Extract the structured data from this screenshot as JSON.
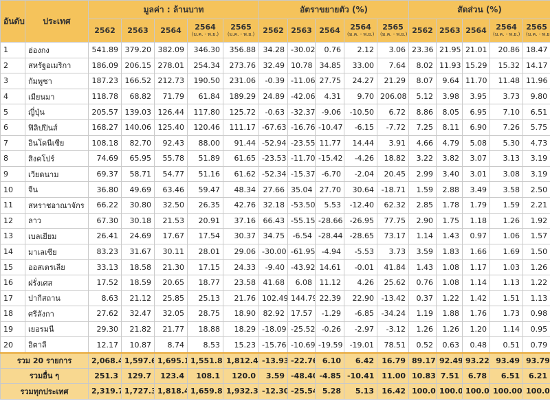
{
  "header": {
    "rank": "อันดับที่",
    "country": "ประเทศ",
    "groups": [
      "มูลค่า : ล้านบาท",
      "อัตราขยายตัว (%)",
      "สัดส่วน (%)"
    ],
    "years": [
      {
        "year": "2562",
        "sub": ""
      },
      {
        "year": "2563",
        "sub": ""
      },
      {
        "year": "2564",
        "sub": ""
      },
      {
        "year": "2564",
        "sub": "(ม.ค. - พ.ย.)"
      },
      {
        "year": "2565",
        "sub": "(ม.ค. - พ.ย.)"
      }
    ]
  },
  "rows": [
    {
      "rank": "1",
      "country": "ฮ่องกง",
      "v": [
        "541.89",
        "379.20",
        "382.09",
        "346.30",
        "356.88",
        "34.28",
        "-30.02",
        "0.76",
        "2.12",
        "3.06",
        "23.36",
        "21.95",
        "21.01",
        "20.86",
        "18.47"
      ]
    },
    {
      "rank": "2",
      "country": "สหรัฐอเมริกา",
      "v": [
        "186.09",
        "206.15",
        "278.01",
        "254.34",
        "273.76",
        "32.49",
        "10.78",
        "34.85",
        "33.00",
        "7.64",
        "8.02",
        "11.93",
        "15.29",
        "15.32",
        "14.17"
      ]
    },
    {
      "rank": "3",
      "country": "กัมพูชา",
      "v": [
        "187.23",
        "166.52",
        "212.73",
        "190.50",
        "231.06",
        "-0.39",
        "-11.06",
        "27.75",
        "24.27",
        "21.29",
        "8.07",
        "9.64",
        "11.70",
        "11.48",
        "11.96"
      ]
    },
    {
      "rank": "4",
      "country": "เมียนมา",
      "v": [
        "118.78",
        "68.82",
        "71.79",
        "61.84",
        "189.29",
        "24.89",
        "-42.06",
        "4.31",
        "9.70",
        "206.08",
        "5.12",
        "3.98",
        "3.95",
        "3.73",
        "9.80"
      ]
    },
    {
      "rank": "5",
      "country": "ญี่ปุ่น",
      "v": [
        "205.57",
        "139.03",
        "126.44",
        "117.80",
        "125.72",
        "-0.63",
        "-32.37",
        "-9.06",
        "-10.50",
        "6.72",
        "8.86",
        "8.05",
        "6.95",
        "7.10",
        "6.51"
      ]
    },
    {
      "rank": "6",
      "country": "ฟิลิปปินส์",
      "v": [
        "168.27",
        "140.06",
        "125.40",
        "120.46",
        "111.17",
        "-67.63",
        "-16.76",
        "-10.47",
        "-6.15",
        "-7.72",
        "7.25",
        "8.11",
        "6.90",
        "7.26",
        "5.75"
      ]
    },
    {
      "rank": "7",
      "country": "อินโดนีเซีย",
      "v": [
        "108.18",
        "82.70",
        "92.43",
        "88.00",
        "91.44",
        "-52.94",
        "-23.55",
        "11.77",
        "14.44",
        "3.91",
        "4.66",
        "4.79",
        "5.08",
        "5.30",
        "4.73"
      ]
    },
    {
      "rank": "8",
      "country": "สิงคโปร์",
      "v": [
        "74.69",
        "65.95",
        "55.78",
        "51.89",
        "61.65",
        "-23.53",
        "-11.70",
        "-15.42",
        "-4.26",
        "18.82",
        "3.22",
        "3.82",
        "3.07",
        "3.13",
        "3.19"
      ]
    },
    {
      "rank": "9",
      "country": "เวียดนาม",
      "v": [
        "69.37",
        "58.71",
        "54.77",
        "51.16",
        "61.62",
        "-52.34",
        "-15.37",
        "-6.70",
        "-2.04",
        "20.45",
        "2.99",
        "3.40",
        "3.01",
        "3.08",
        "3.19"
      ]
    },
    {
      "rank": "10",
      "country": "จีน",
      "v": [
        "36.80",
        "49.69",
        "63.46",
        "59.47",
        "48.34",
        "27.66",
        "35.04",
        "27.70",
        "30.64",
        "-18.71",
        "1.59",
        "2.88",
        "3.49",
        "3.58",
        "2.50"
      ]
    },
    {
      "rank": "11",
      "country": "สหราชอาณาจักร",
      "v": [
        "66.22",
        "30.80",
        "32.50",
        "26.35",
        "42.76",
        "32.18",
        "-53.50",
        "5.53",
        "-12.40",
        "62.32",
        "2.85",
        "1.78",
        "1.79",
        "1.59",
        "2.21"
      ]
    },
    {
      "rank": "12",
      "country": "ลาว",
      "v": [
        "67.30",
        "30.18",
        "21.53",
        "20.91",
        "37.16",
        "66.43",
        "-55.15",
        "-28.66",
        "-26.95",
        "77.75",
        "2.90",
        "1.75",
        "1.18",
        "1.26",
        "1.92"
      ]
    },
    {
      "rank": "13",
      "country": "เบลเยียม",
      "v": [
        "26.41",
        "24.69",
        "17.67",
        "17.54",
        "30.37",
        "34.75",
        "-6.54",
        "-28.44",
        "-28.65",
        "73.17",
        "1.14",
        "1.43",
        "0.97",
        "1.06",
        "1.57"
      ]
    },
    {
      "rank": "14",
      "country": "มาเลเซีย",
      "v": [
        "83.23",
        "31.67",
        "30.11",
        "28.01",
        "29.06",
        "-30.00",
        "-61.95",
        "-4.94",
        "-5.53",
        "3.73",
        "3.59",
        "1.83",
        "1.66",
        "1.69",
        "1.50"
      ]
    },
    {
      "rank": "15",
      "country": "ออสเตรเลีย",
      "v": [
        "33.13",
        "18.58",
        "21.30",
        "17.15",
        "24.33",
        "-9.40",
        "-43.92",
        "14.61",
        "-0.01",
        "41.84",
        "1.43",
        "1.08",
        "1.17",
        "1.03",
        "1.26"
      ]
    },
    {
      "rank": "16",
      "country": "ฝรั่งเศส",
      "v": [
        "17.52",
        "18.59",
        "20.65",
        "18.77",
        "23.58",
        "41.68",
        "6.08",
        "11.12",
        "4.26",
        "25.62",
        "0.76",
        "1.08",
        "1.14",
        "1.13",
        "1.22"
      ]
    },
    {
      "rank": "17",
      "country": "ปากีสถาน",
      "v": [
        "8.63",
        "21.12",
        "25.85",
        "25.13",
        "21.76",
        "102.49",
        "144.79",
        "22.39",
        "22.90",
        "-13.42",
        "0.37",
        "1.22",
        "1.42",
        "1.51",
        "1.13"
      ]
    },
    {
      "rank": "18",
      "country": "ศรีลังกา",
      "v": [
        "27.62",
        "32.47",
        "32.05",
        "28.75",
        "18.90",
        "82.92",
        "17.57",
        "-1.29",
        "-6.85",
        "-34.24",
        "1.19",
        "1.88",
        "1.76",
        "1.73",
        "0.98"
      ]
    },
    {
      "rank": "19",
      "country": "เยอรมนี",
      "v": [
        "29.30",
        "21.82",
        "21.77",
        "18.88",
        "18.29",
        "-18.09",
        "-25.52",
        "-0.26",
        "-2.97",
        "-3.12",
        "1.26",
        "1.26",
        "1.20",
        "1.14",
        "0.95"
      ]
    },
    {
      "rank": "20",
      "country": "อิตาลี",
      "v": [
        "12.17",
        "10.87",
        "8.74",
        "8.53",
        "15.23",
        "-15.76",
        "-10.69",
        "-19.59",
        "-19.01",
        "78.51",
        "0.52",
        "0.63",
        "0.48",
        "0.51",
        "0.79"
      ]
    }
  ],
  "totals": [
    {
      "label": "รวม 20 รายการ",
      "v": [
        "2,068.4",
        "1,597.6",
        "1,695.1",
        "1,551.8",
        "1,812.4",
        "-13.93",
        "-22.76",
        "6.10",
        "6.42",
        "16.79",
        "89.17",
        "92.49",
        "93.22",
        "93.49",
        "93.79"
      ]
    },
    {
      "label": "รวมอื่น ๆ",
      "v": [
        "251.3",
        "129.7",
        "123.4",
        "108.1",
        "120.0",
        "3.59",
        "-48.40",
        "-4.85",
        "-10.41",
        "11.00",
        "10.83",
        "7.51",
        "6.78",
        "6.51",
        "6.21"
      ]
    },
    {
      "label": "รวมทุกประเทศ",
      "v": [
        "2,319.71",
        "1,727.31",
        "1,818.45",
        "1,659.86",
        "1,932.36",
        "-12.30",
        "-25.54",
        "5.28",
        "5.13",
        "16.42",
        "100.00",
        "100.00",
        "100.00",
        "100.00",
        "100.00"
      ]
    }
  ]
}
